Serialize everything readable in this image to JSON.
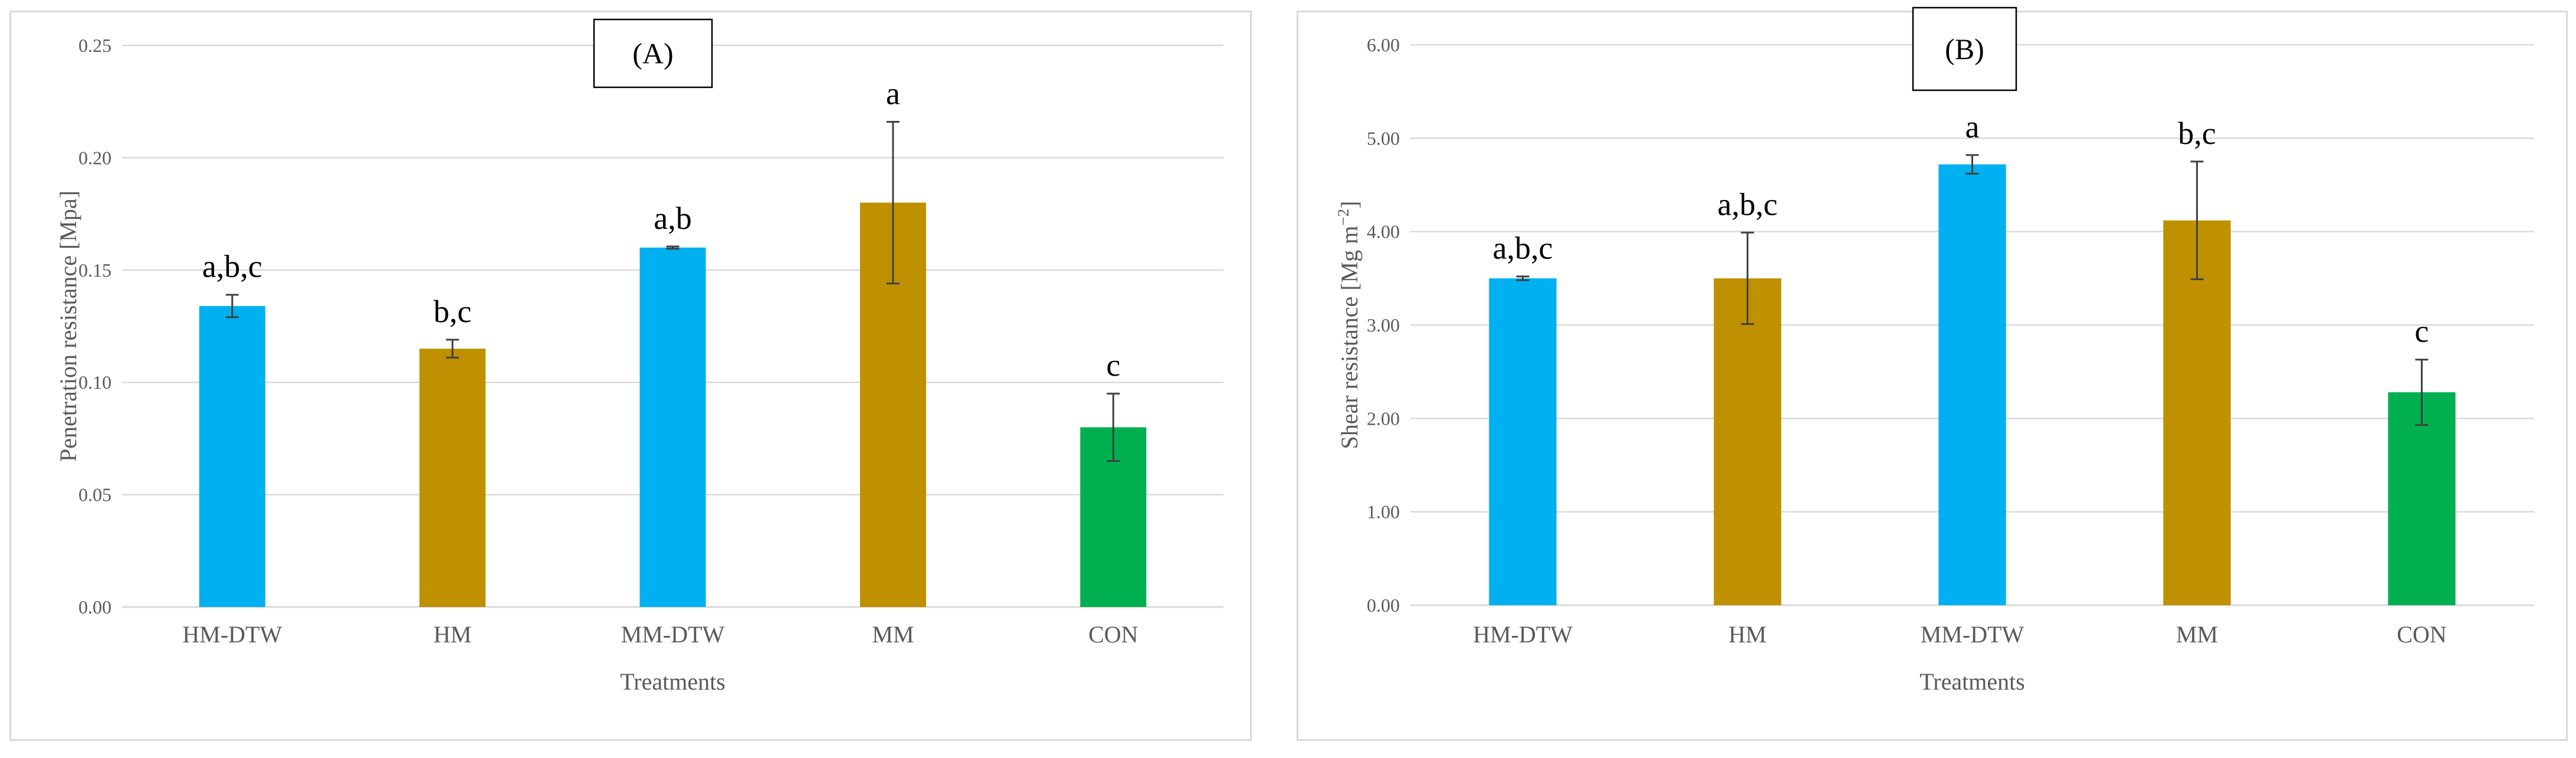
{
  "chart_data": [
    {
      "type": "bar",
      "panel_tag": "(A)",
      "title": "",
      "xlabel": "Treatments",
      "ylabel": "Penetration resistance [Mpa]",
      "ylim": [
        0,
        0.25
      ],
      "yticks": [
        "0.00",
        "0.05",
        "0.10",
        "0.15",
        "0.20",
        "0.25"
      ],
      "grid": true,
      "categories": [
        "HM-DTW",
        "HM",
        "MM-DTW",
        "MM",
        "CON"
      ],
      "values": [
        0.134,
        0.115,
        0.16,
        0.18,
        0.08
      ],
      "errors": [
        0.005,
        0.004,
        0.0005,
        0.036,
        0.015
      ],
      "significance": [
        "a,b,c",
        "b,c",
        "a,b",
        "a",
        "c"
      ],
      "colors": [
        "#00b0f0",
        "#bf9000",
        "#00b0f0",
        "#bf9000",
        "#00b050"
      ]
    },
    {
      "type": "bar",
      "panel_tag": "(B)",
      "title": "",
      "xlabel": "Treatments",
      "ylabel": "Shear resistance [Mg m",
      "ylabel_sup": "−2",
      "ylabel_end": "]",
      "ylim": [
        0,
        6
      ],
      "yticks": [
        "0.00",
        "1.00",
        "2.00",
        "3.00",
        "4.00",
        "5.00",
        "6.00"
      ],
      "grid": true,
      "categories": [
        "HM-DTW",
        "HM",
        "MM-DTW",
        "MM",
        "CON"
      ],
      "values": [
        3.5,
        3.5,
        4.72,
        4.12,
        2.28
      ],
      "errors": [
        0.02,
        0.49,
        0.1,
        0.63,
        0.35
      ],
      "significance": [
        "a,b,c",
        "a,b,c",
        "a",
        "b,c",
        "c"
      ],
      "colors": [
        "#00b0f0",
        "#bf9000",
        "#00b0f0",
        "#bf9000",
        "#00b050"
      ]
    }
  ]
}
